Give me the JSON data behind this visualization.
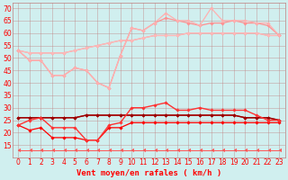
{
  "x": [
    0,
    1,
    2,
    3,
    4,
    5,
    6,
    7,
    8,
    9,
    10,
    11,
    12,
    13,
    14,
    15,
    16,
    17,
    18,
    19,
    20,
    21,
    22,
    23
  ],
  "series": [
    {
      "name": "line1_light",
      "y": [
        53,
        52,
        52,
        52,
        52,
        53,
        54,
        55,
        56,
        57,
        57,
        58,
        59,
        59,
        59,
        60,
        60,
        60,
        60,
        60,
        60,
        60,
        59,
        59
      ],
      "color": "#F0A0A0",
      "lw": 0.9,
      "marker": "D",
      "ms": 1.8,
      "zorder": 2
    },
    {
      "name": "line2_lighter",
      "y": [
        53,
        52,
        52,
        52,
        52,
        53,
        54,
        55,
        56,
        57,
        57,
        58,
        59,
        59,
        59,
        60,
        60,
        60,
        60,
        60,
        60,
        60,
        59,
        59
      ],
      "color": "#FFB8B8",
      "lw": 0.9,
      "marker": "D",
      "ms": 1.8,
      "zorder": 2
    },
    {
      "name": "line_spiky",
      "y": [
        53,
        49,
        49,
        43,
        43,
        46,
        45,
        40,
        38,
        51,
        62,
        61,
        64,
        66,
        65,
        64,
        63,
        64,
        64,
        65,
        64,
        64,
        63,
        59
      ],
      "color": "#FF9090",
      "lw": 0.9,
      "marker": "D",
      "ms": 1.8,
      "zorder": 2
    },
    {
      "name": "line_spiky2",
      "y": [
        53,
        49,
        49,
        43,
        43,
        46,
        45,
        40,
        38,
        51,
        62,
        61,
        64,
        68,
        65,
        65,
        63,
        70,
        65,
        65,
        65,
        64,
        64,
        59
      ],
      "color": "#FFB0B0",
      "lw": 0.9,
      "marker": "D",
      "ms": 1.8,
      "zorder": 2
    },
    {
      "name": "flat_upper",
      "y": [
        26,
        26,
        26,
        26,
        26,
        26,
        27,
        27,
        27,
        27,
        27,
        27,
        27,
        27,
        27,
        27,
        27,
        27,
        27,
        27,
        26,
        26,
        26,
        25
      ],
      "color": "#CC2222",
      "lw": 1.0,
      "marker": "D",
      "ms": 1.8,
      "zorder": 3
    },
    {
      "name": "flat_upper2",
      "y": [
        26,
        26,
        26,
        26,
        26,
        26,
        27,
        27,
        27,
        27,
        27,
        27,
        27,
        27,
        27,
        27,
        27,
        27,
        27,
        27,
        26,
        26,
        26,
        25
      ],
      "color": "#990000",
      "lw": 1.0,
      "marker": "D",
      "ms": 1.8,
      "zorder": 3
    },
    {
      "name": "peak_line",
      "y": [
        23,
        25,
        26,
        22,
        22,
        22,
        17,
        17,
        23,
        24,
        30,
        30,
        31,
        32,
        29,
        29,
        30,
        29,
        29,
        29,
        29,
        27,
        25,
        25
      ],
      "color": "#FF3333",
      "lw": 1.0,
      "marker": "D",
      "ms": 1.8,
      "zorder": 4
    },
    {
      "name": "low_line",
      "y": [
        23,
        21,
        22,
        18,
        18,
        18,
        17,
        17,
        22,
        22,
        24,
        24,
        24,
        24,
        24,
        24,
        24,
        24,
        24,
        24,
        24,
        24,
        24,
        24
      ],
      "color": "#FF0000",
      "lw": 0.9,
      "marker": "D",
      "ms": 1.8,
      "zorder": 3
    },
    {
      "name": "arrow_row",
      "y": [
        13,
        13,
        13,
        13,
        13,
        13,
        13,
        13,
        13,
        13,
        13,
        13,
        13,
        13,
        13,
        13,
        13,
        13,
        13,
        13,
        13,
        13,
        13,
        13
      ],
      "color": "#FF5555",
      "lw": 0.7,
      "marker": 4,
      "ms": 3.0,
      "zorder": 1
    }
  ],
  "xlabel": "Vent moyen/en rafales ( km/h )",
  "ylim": [
    10,
    72
  ],
  "yticks": [
    15,
    20,
    25,
    30,
    35,
    40,
    45,
    50,
    55,
    60,
    65,
    70
  ],
  "xticks": [
    0,
    1,
    2,
    3,
    4,
    5,
    6,
    7,
    8,
    9,
    10,
    11,
    12,
    13,
    14,
    15,
    16,
    17,
    18,
    19,
    20,
    21,
    22,
    23
  ],
  "bg_color": "#D0EFEF",
  "grid_color": "#C08080",
  "label_color": "#FF0000",
  "font_size": 6.5
}
